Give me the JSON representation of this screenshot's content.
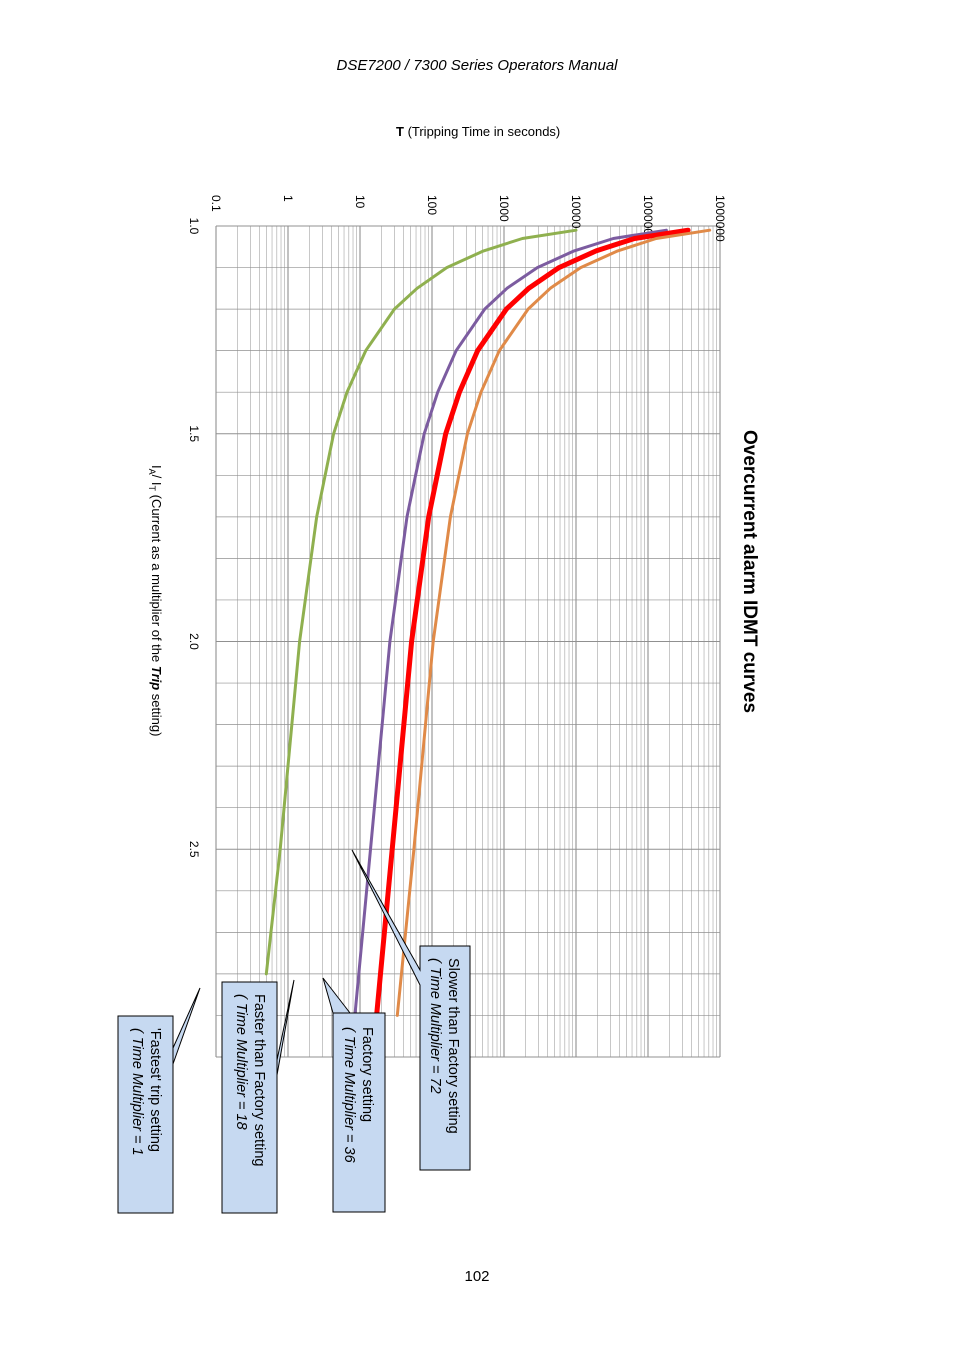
{
  "page": {
    "header": "DSE7200 / 7300 Series Operators Manual",
    "page_number": "102"
  },
  "chart_data": {
    "type": "line",
    "title": "Overcurrent alarm IDMT curves",
    "xlabel": {
      "symbol": "I",
      "sub1": "A",
      "slash": "/ ",
      "symbol2": "I",
      "sub2": "T",
      "text_before": " (Current as a multiplier of the ",
      "emphasis": "Trip",
      "text_after": " setting)"
    },
    "ylabel": {
      "symbol": "T",
      "text": " (Tripping Time in seconds)"
    },
    "x_ticks": [
      "1.0",
      "1.5",
      "2.0",
      "2.5"
    ],
    "y_ticks": [
      "0.1",
      "1",
      "10",
      "100",
      "1000",
      "10000",
      "100000",
      "1000000"
    ],
    "xlim": [
      1.0,
      3.0
    ],
    "ylim": [
      0.1,
      1000000
    ],
    "yscale": "log",
    "grid": true,
    "orientation": "rotated 90 degrees clockwise",
    "series": [
      {
        "color": "#8fb04f",
        "time_multiplier": 1,
        "x": [
          1.01,
          1.03,
          1.06,
          1.1,
          1.15,
          1.2,
          1.3,
          1.4,
          1.5,
          1.7,
          2.0,
          2.5,
          2.8
        ],
        "values": [
          10000,
          1800,
          520,
          160,
          62,
          30,
          12,
          6.6,
          4.3,
          2.5,
          1.45,
          0.78,
          0.5
        ]
      },
      {
        "color": "#7c5ca0",
        "time_multiplier": 18,
        "x": [
          1.01,
          1.03,
          1.06,
          1.1,
          1.15,
          1.2,
          1.3,
          1.4,
          1.5,
          1.7,
          2.0,
          2.5,
          2.9
        ],
        "values": [
          180000,
          33000,
          9400,
          2900,
          1100,
          540,
          216,
          120,
          78,
          45,
          26,
          14,
          8.5
        ]
      },
      {
        "color": "#ff0000",
        "time_multiplier": 36,
        "x": [
          1.01,
          1.03,
          1.06,
          1.1,
          1.15,
          1.2,
          1.3,
          1.4,
          1.5,
          1.7,
          2.0,
          2.5,
          2.9
        ],
        "values": [
          360000,
          65000,
          19000,
          5800,
          2200,
          1080,
          430,
          240,
          155,
          90,
          52,
          28,
          17
        ]
      },
      {
        "color": "#e08a48",
        "time_multiplier": 72,
        "x": [
          1.01,
          1.03,
          1.06,
          1.1,
          1.15,
          1.2,
          1.3,
          1.4,
          1.5,
          1.7,
          2.0,
          2.5,
          2.9
        ],
        "values": [
          720000,
          130000,
          38000,
          11600,
          4400,
          2160,
          860,
          480,
          310,
          180,
          104,
          56,
          33
        ]
      }
    ],
    "annotations": [
      {
        "line1": "Slower than Factory setting",
        "line2": "( Time Multiplier = 72"
      },
      {
        "line1": "Factory setting",
        "line2": "( Time Multiplier = 36"
      },
      {
        "line1": "Faster than Factory setting",
        "line2": "( Time Multiplier = 18"
      },
      {
        "line1": "'Fastest' trip setting",
        "line2": "( Time Multiplier = 1"
      }
    ],
    "colors": {
      "grid": "#909090",
      "callout_fill": "#c6d9f1",
      "callout_stroke": "#000000"
    }
  }
}
